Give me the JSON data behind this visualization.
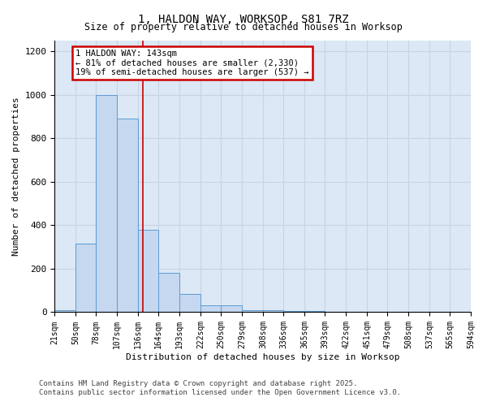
{
  "title": "1, HALDON WAY, WORKSOP, S81 7RZ",
  "subtitle": "Size of property relative to detached houses in Worksop",
  "xlabel": "Distribution of detached houses by size in Worksop",
  "ylabel": "Number of detached properties",
  "bins": [
    21,
    50,
    78,
    107,
    136,
    164,
    193,
    222,
    250,
    279,
    308,
    336,
    365,
    393,
    422,
    451,
    479,
    508,
    537,
    565,
    594
  ],
  "counts": [
    10,
    315,
    1000,
    890,
    380,
    180,
    85,
    30,
    30,
    10,
    10,
    5,
    5,
    3,
    3,
    1,
    3,
    1,
    1,
    1
  ],
  "bar_color": "#c5d8ef",
  "bar_edge_color": "#5b9bd5",
  "vline_x": 143,
  "vline_color": "#cc0000",
  "annotation_text": "1 HALDON WAY: 143sqm\n← 81% of detached houses are smaller (2,330)\n19% of semi-detached houses are larger (537) →",
  "annotation_box_color": "#cc0000",
  "ylim": [
    0,
    1250
  ],
  "yticks": [
    0,
    200,
    400,
    600,
    800,
    1000,
    1200
  ],
  "footnote": "Contains HM Land Registry data © Crown copyright and database right 2025.\nContains public sector information licensed under the Open Government Licence v3.0.",
  "grid_color": "#c8d4e3",
  "bg_color": "#dce8f5",
  "fig_bg_color": "#f0f4fa"
}
